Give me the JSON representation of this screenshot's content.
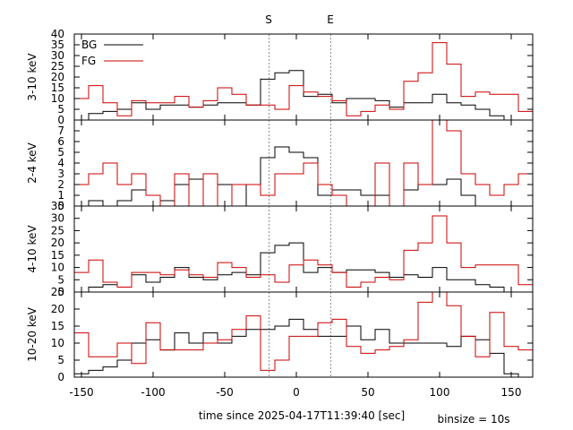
{
  "chart_data": {
    "type": "line",
    "style": "step histogram",
    "xlabel": "time since 2025-04-17T11:39:40 [sec]",
    "note": "binsize = 10s",
    "xlim": [
      -155,
      165
    ],
    "xticks": [
      -150,
      -100,
      -50,
      0,
      50,
      100,
      150
    ],
    "markers": [
      {
        "label": "S",
        "x": -19
      },
      {
        "label": "E",
        "x": 24
      }
    ],
    "legend": {
      "position": "top-left",
      "entries": [
        {
          "label": "BG",
          "color": "#000000"
        },
        {
          "label": "FG",
          "color": "#cc0000"
        }
      ]
    },
    "bin_edges": [
      -155,
      -145,
      -135,
      -125,
      -115,
      -105,
      -95,
      -85,
      -75,
      -65,
      -55,
      -45,
      -35,
      -25,
      -15,
      -5,
      5,
      15,
      25,
      35,
      45,
      55,
      65,
      75,
      85,
      95,
      105,
      115,
      125,
      135,
      145,
      155,
      165
    ],
    "panels": [
      {
        "ylabel": "3-10 keV",
        "ylim": [
          0,
          40
        ],
        "yticks": [
          0,
          5,
          10,
          15,
          20,
          25,
          30,
          35,
          40
        ],
        "series": [
          {
            "name": "BG",
            "color": "#000000",
            "values": [
              0,
              3,
              4,
              5,
              8,
              5,
              7,
              7,
              6,
              7,
              8,
              8,
              7,
              19,
              22,
              23,
              11,
              12,
              8,
              10,
              10,
              9,
              6,
              8,
              8,
              12,
              8,
              7,
              5,
              2,
              0,
              0
            ]
          },
          {
            "name": "FG",
            "color": "#cc0000",
            "values": [
              10,
              16,
              8,
              2,
              9,
              8,
              8,
              11,
              6,
              9,
              15,
              12,
              7,
              7,
              5,
              16,
              13,
              11,
              9,
              2,
              4,
              7,
              5,
              18,
              22,
              36,
              26,
              11,
              13,
              12,
              12,
              4
            ]
          }
        ]
      },
      {
        "ylabel": "2-4 keV",
        "ylim": [
          0,
          8
        ],
        "yticks": [
          0,
          1,
          2,
          3,
          4,
          5,
          6,
          7
        ],
        "series": [
          {
            "name": "BG",
            "color": "#000000",
            "values": [
              0,
              0.5,
              0,
              0.5,
              1.5,
              1,
              0.5,
              2,
              2.5,
              0,
              2,
              0,
              2,
              4.5,
              5.5,
              5,
              4.5,
              1,
              1.5,
              1.5,
              1,
              1,
              0,
              1.5,
              2,
              2,
              2.5,
              1,
              0,
              0,
              0,
              0
            ]
          },
          {
            "name": "FG",
            "color": "#cc0000",
            "values": [
              2,
              3,
              4,
              2,
              3,
              1,
              0,
              3,
              0,
              3,
              0,
              2,
              2,
              1,
              3,
              3,
              4,
              2,
              1,
              0,
              0,
              4,
              0,
              4,
              2,
              8,
              7,
              3,
              2,
              1,
              2,
              3
            ]
          }
        ]
      },
      {
        "ylabel": "4-10 keV",
        "ylim": [
          0,
          35
        ],
        "yticks": [
          0,
          5,
          10,
          15,
          20,
          25,
          30,
          35
        ],
        "series": [
          {
            "name": "BG",
            "color": "#000000",
            "values": [
              0,
              2,
              3,
              2,
              7,
              4,
              6,
              10,
              6,
              5,
              7,
              8,
              7,
              16,
              19,
              20,
              8,
              10,
              8,
              9,
              9,
              8,
              6,
              7,
              6,
              10,
              5,
              5,
              3,
              2,
              0,
              0
            ]
          },
          {
            "name": "FG",
            "color": "#cc0000",
            "values": [
              8,
              13,
              4,
              2,
              8,
              8,
              7,
              9,
              7,
              6,
              12,
              10,
              6,
              7,
              4,
              11,
              13,
              11,
              8,
              2,
              4,
              6,
              5,
              17,
              20,
              31,
              20,
              10,
              11,
              11,
              11,
              3
            ]
          }
        ]
      },
      {
        "ylabel": "10-20 keV",
        "ylim": [
          0,
          25
        ],
        "yticks": [
          0,
          5,
          10,
          15,
          20,
          25
        ],
        "series": [
          {
            "name": "BG",
            "color": "#000000",
            "values": [
              1,
              2,
              3,
              5,
              10,
              11,
              8,
              13,
              10,
              13,
              10,
              12,
              14,
              14,
              15,
              17,
              14,
              12,
              12,
              15,
              11,
              14,
              10,
              10,
              10,
              10,
              9,
              12,
              11,
              7,
              1,
              0
            ]
          },
          {
            "name": "FG",
            "color": "#cc0000",
            "values": [
              13,
              6,
              6,
              10,
              4,
              16,
              8,
              8,
              8,
              10,
              11,
              14,
              18,
              2,
              5,
              12,
              12,
              16,
              17,
              9,
              7,
              8,
              9,
              11,
              22,
              28,
              21,
              12,
              6,
              19,
              9,
              8
            ]
          }
        ]
      }
    ]
  }
}
